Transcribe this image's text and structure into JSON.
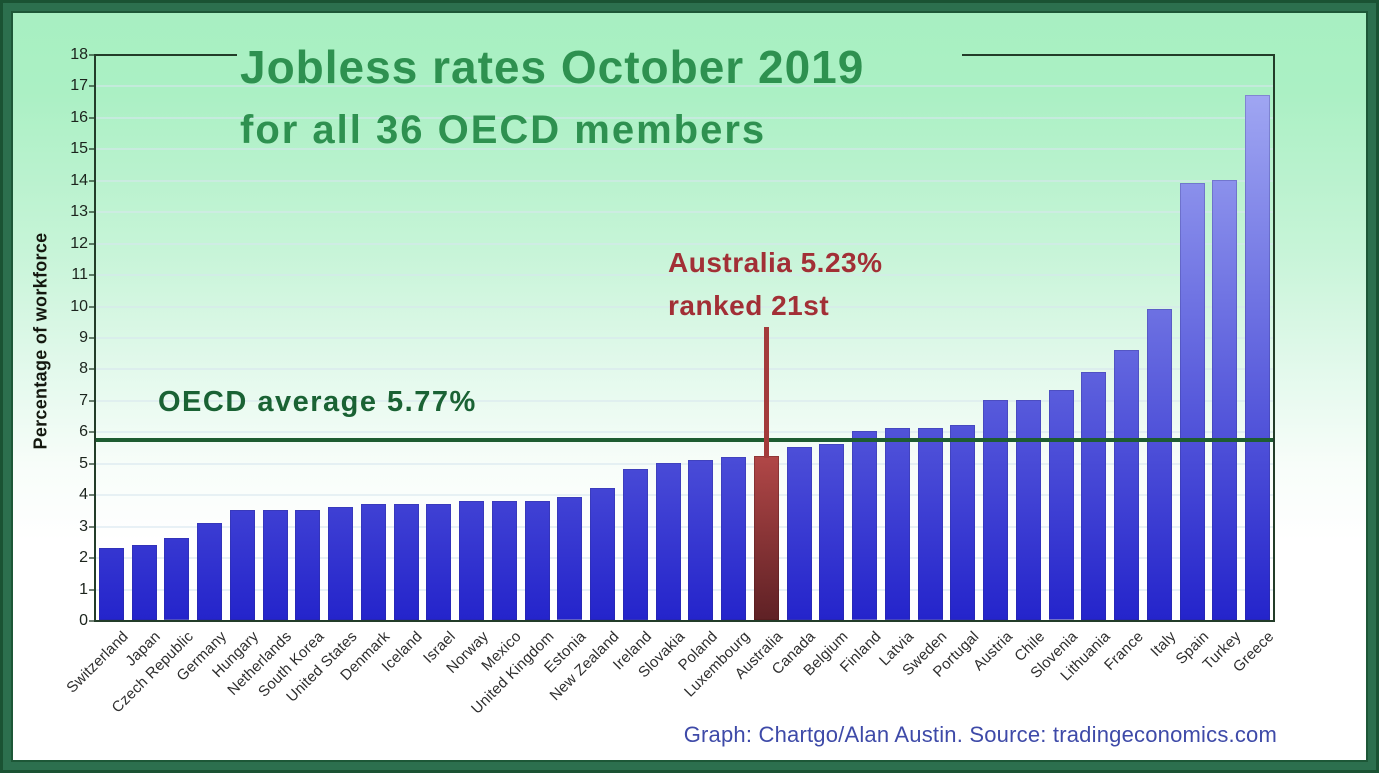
{
  "title": {
    "line1": "Jobless rates October 2019",
    "line2": "for all 36 OECD members"
  },
  "y_axis": {
    "label": "Percentage of workforce",
    "ticks": [
      0,
      1,
      2,
      3,
      4,
      5,
      6,
      7,
      8,
      9,
      10,
      11,
      12,
      13,
      14,
      15,
      16,
      17,
      18
    ]
  },
  "annotations": {
    "australia": {
      "line1": "Australia 5.23%",
      "line2": "ranked 21st"
    },
    "oecd_average": {
      "label": "OECD average 5.77%",
      "value": 5.77
    }
  },
  "footer": {
    "credit": "Graph: Chartgo/Alan Austin. Source: tradingeconomics.com"
  },
  "colors": {
    "title_green": "#2e9150",
    "oecd_text_green": "#1a6234",
    "average_line_green": "#1d5c31",
    "annotation_red": "#a22f36",
    "pointer_red": "#a33b3b",
    "bar_blue_top": "#a9b0f5",
    "bar_blue_bottom": "#2424cb",
    "bar_red_top": "#b14747",
    "bar_red_bottom": "#5f2125",
    "credit_blue": "#3e4aa8"
  },
  "chart_data": {
    "type": "bar",
    "title": "Jobless rates October 2019",
    "subtitle": "for all 36 OECD members",
    "xlabel": "",
    "ylabel": "Percentage of workforce",
    "ylim": [
      0,
      18
    ],
    "grid": true,
    "legend_position": "none",
    "categories": [
      "Switzerland",
      "Japan",
      "Czech Republic",
      "Germany",
      "Hungary",
      "Netherlands",
      "South Korea",
      "United States",
      "Denmark",
      "Iceland",
      "Israel",
      "Norway",
      "Mexico",
      "United Kingdom",
      "Estonia",
      "New Zealand",
      "Ireland",
      "Slovakia",
      "Poland",
      "Luxembourg",
      "Australia",
      "Canada",
      "Belgium",
      "Finland",
      "Latvia",
      "Sweden",
      "Portugal",
      "Austria",
      "Chile",
      "Slovenia",
      "Lithuania",
      "France",
      "Italy",
      "Spain",
      "Turkey",
      "Greece"
    ],
    "values": [
      2.3,
      2.4,
      2.6,
      3.1,
      3.5,
      3.5,
      3.5,
      3.6,
      3.7,
      3.7,
      3.7,
      3.8,
      3.8,
      3.8,
      3.9,
      4.2,
      4.8,
      5.0,
      5.1,
      5.2,
      5.23,
      5.5,
      5.6,
      6.0,
      6.1,
      6.1,
      6.2,
      7.0,
      7.0,
      7.3,
      7.9,
      8.6,
      9.9,
      13.9,
      14.0,
      16.7
    ],
    "highlight_index": 20,
    "highlight_label": "Australia 5.23% ranked 21st",
    "average_line": {
      "label": "OECD average 5.77%",
      "value": 5.77
    }
  }
}
